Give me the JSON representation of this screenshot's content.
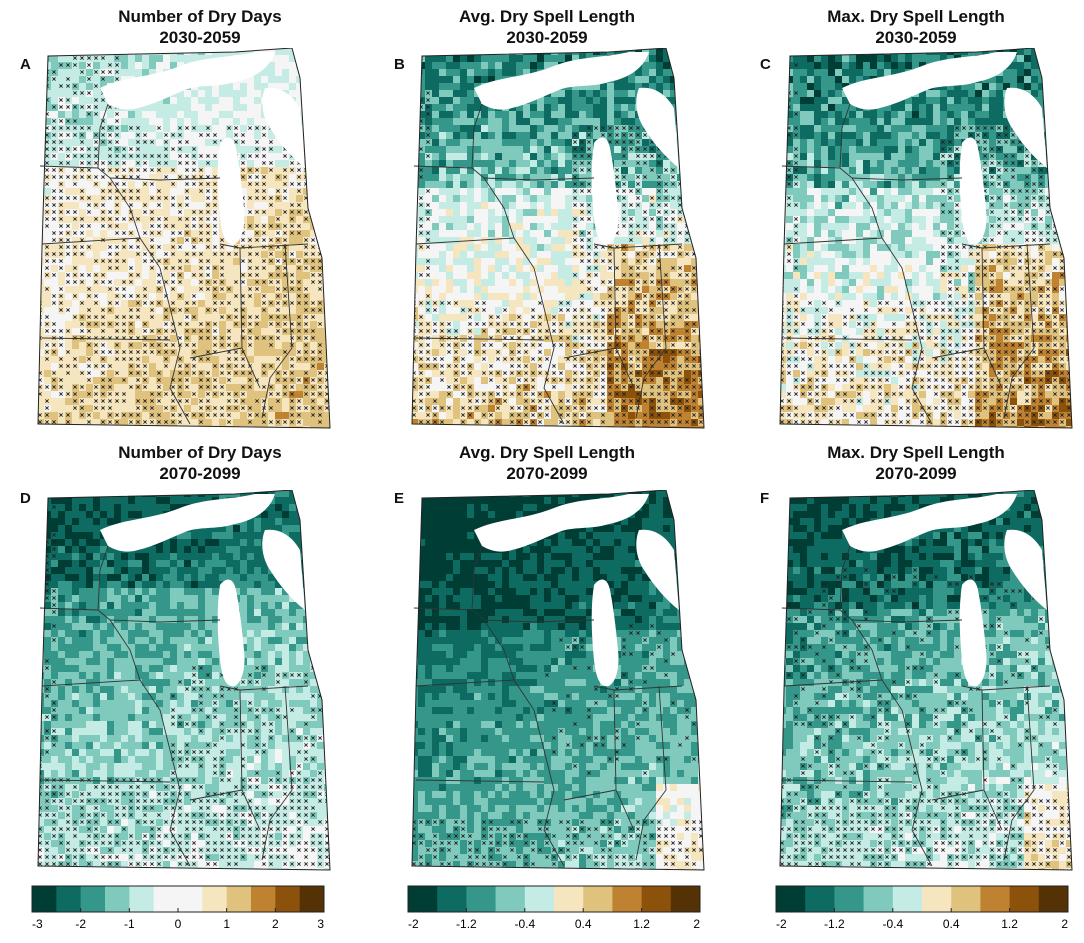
{
  "palettes": {
    "teal_brown": [
      "#003d35",
      "#0d6b62",
      "#35968a",
      "#7fcabd",
      "#c4ebe4",
      "#f5f5f5",
      "#f5e6bf",
      "#dfc27e",
      "#bf8230",
      "#8c520c",
      "#553106"
    ]
  },
  "panels": [
    {
      "id": "A",
      "title": "Number of Dry Days",
      "period": "2030-2059",
      "scheme": "a"
    },
    {
      "id": "B",
      "title": "Avg. Dry Spell Length",
      "period": "2030-2059",
      "scheme": "b"
    },
    {
      "id": "C",
      "title": "Max. Dry Spell Length",
      "period": "2030-2059",
      "scheme": "c"
    },
    {
      "id": "D",
      "title": "Number of Dry Days",
      "period": "2070-2099",
      "scheme": "d"
    },
    {
      "id": "E",
      "title": "Avg. Dry Spell Length",
      "period": "2070-2099",
      "scheme": "e"
    },
    {
      "id": "F",
      "title": "Max. Dry Spell Length",
      "period": "2070-2099",
      "scheme": "f"
    }
  ],
  "colorbars": [
    {
      "name": "dry-days",
      "ticks": [
        "-3",
        "-2",
        "-1",
        "0",
        "1",
        "2",
        "3"
      ],
      "colors": [
        "#003d35",
        "#0d6b62",
        "#35968a",
        "#7fcabd",
        "#c4ebe4",
        "#f5f5f5",
        "#f5f5f5",
        "#f5e6bf",
        "#dfc27e",
        "#bf8230",
        "#8c520c",
        "#553106"
      ]
    },
    {
      "name": "avg-spell",
      "ticks": [
        "-2",
        "-1.2",
        "-0.4",
        "0.4",
        "1.2",
        "2"
      ],
      "colors": [
        "#003d35",
        "#0d6b62",
        "#35968a",
        "#7fcabd",
        "#c4ebe4",
        "#f5e6bf",
        "#dfc27e",
        "#bf8230",
        "#8c520c",
        "#553106"
      ]
    },
    {
      "name": "max-spell",
      "ticks": [
        "-2",
        "-1.2",
        "-0.4",
        "0.4",
        "1.2",
        "2"
      ],
      "colors": [
        "#003d35",
        "#0d6b62",
        "#35968a",
        "#7fcabd",
        "#c4ebe4",
        "#f5e6bf",
        "#dfc27e",
        "#bf8230",
        "#8c520c",
        "#553106"
      ]
    }
  ]
}
